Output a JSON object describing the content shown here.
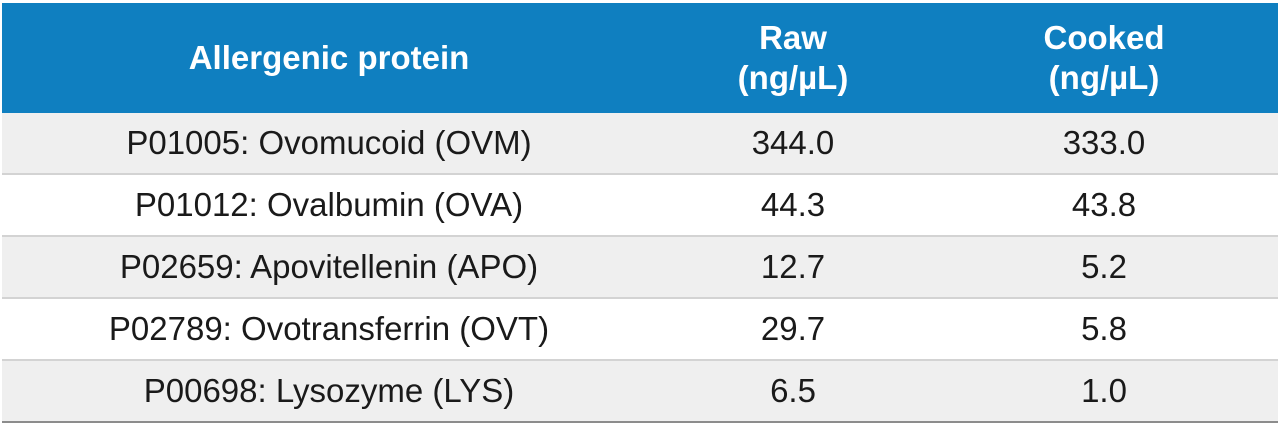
{
  "table": {
    "header": {
      "protein": "Allergenic protein",
      "raw_line1": "Raw",
      "raw_line2": "(ng/µL)",
      "cooked_line1": "Cooked",
      "cooked_line2": "(ng/µL)"
    },
    "rows": [
      {
        "protein": "P01005: Ovomucoid (OVM)",
        "raw": "344.0",
        "cooked": "333.0"
      },
      {
        "protein": "P01012: Ovalbumin (OVA)",
        "raw": "44.3",
        "cooked": "43.8"
      },
      {
        "protein": "P02659: Apovitellenin (APO)",
        "raw": "12.7",
        "cooked": "5.2"
      },
      {
        "protein": "P02789: Ovotransferrin (OVT)",
        "raw": "29.7",
        "cooked": "5.8"
      },
      {
        "protein": "P00698: Lysozyme (LYS)",
        "raw": "6.5",
        "cooked": "1.0"
      }
    ]
  },
  "colors": {
    "header_bg": "#0f7fc0",
    "header_text": "#ffffff",
    "shaded_row_bg": "#efefef",
    "row_divider": "#d3d3d3"
  }
}
